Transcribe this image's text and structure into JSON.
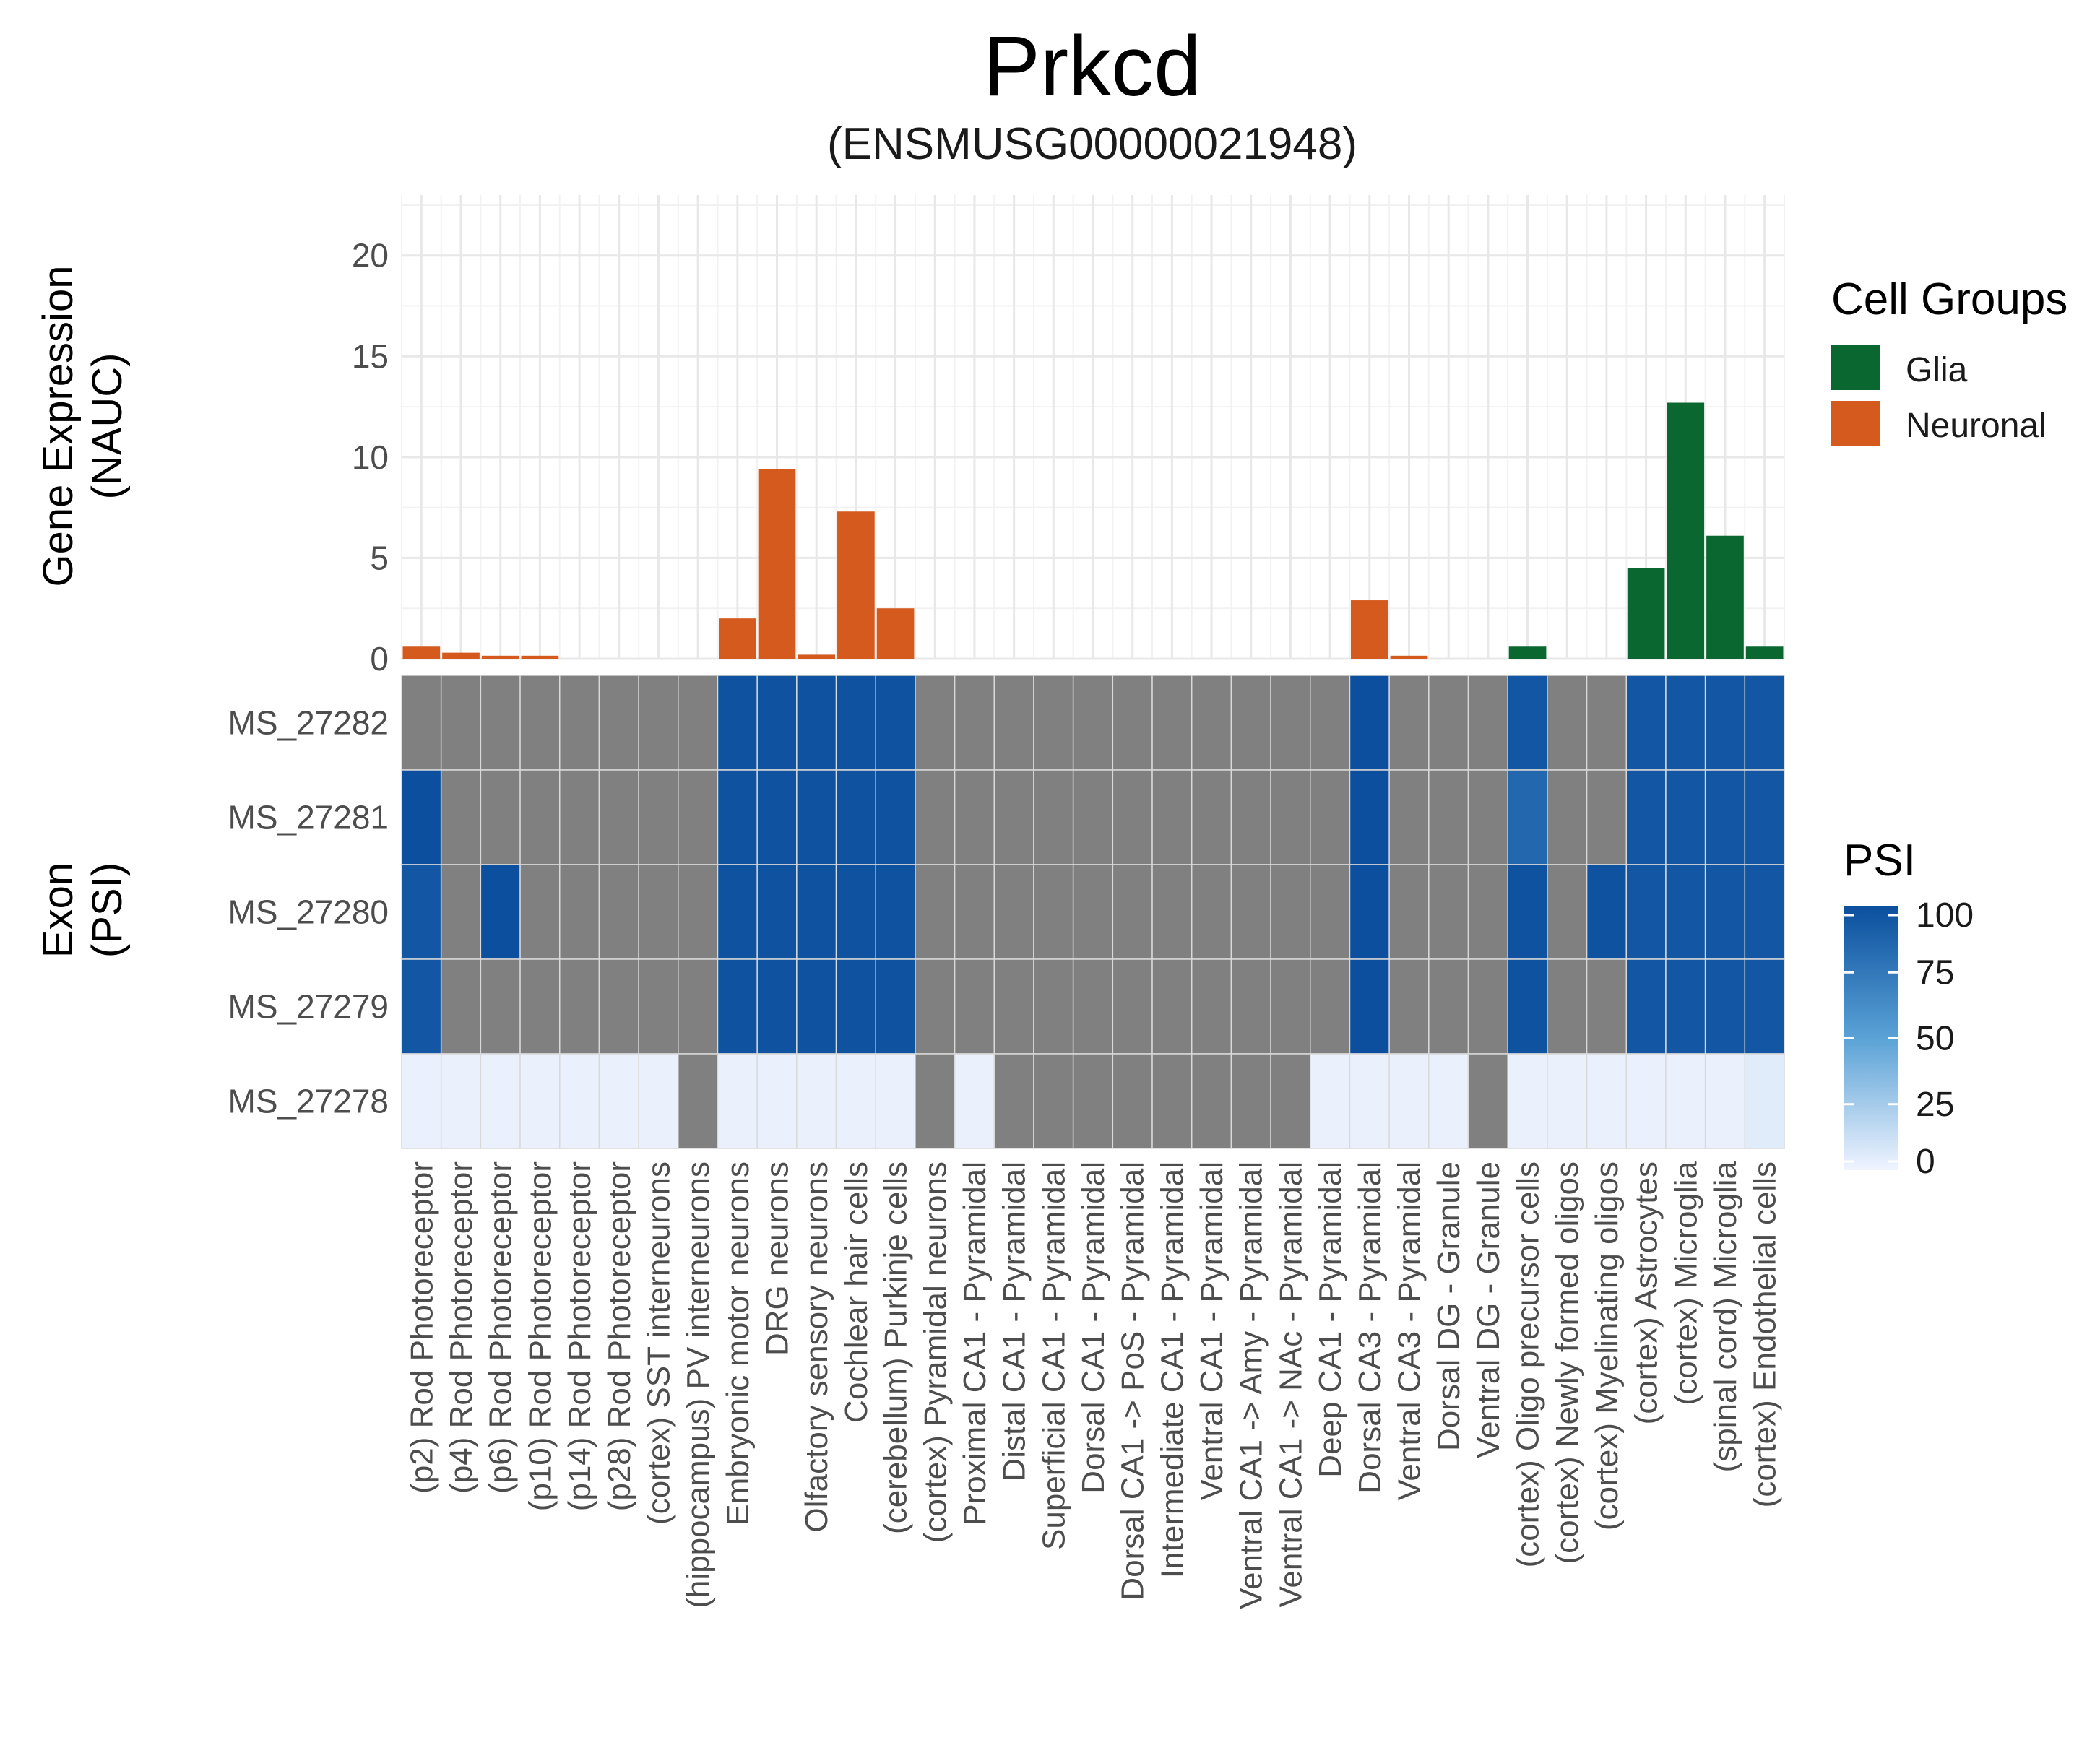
{
  "chart_data": {
    "type": "bar+heatmap",
    "title": "Prkcd",
    "subtitle": "(ENSMUSG00000021948)",
    "bar_ylabel_line1": "Gene Expression",
    "bar_ylabel_line2": "(NAUC)",
    "heat_ylabel_line1": "Exon",
    "heat_ylabel_line2": "(PSI)",
    "ylim": [
      0,
      23
    ],
    "yticks": [
      "0",
      "5",
      "10",
      "15",
      "20"
    ],
    "categories": [
      "(p2) Rod Photoreceptor",
      "(p4) Rod Photoreceptor",
      "(p6) Rod Photoreceptor",
      "(p10) Rod Photoreceptor",
      "(p14) Rod Photoreceptor",
      "(p28) Rod Photoreceptor",
      "(cortex) SST interneurons",
      "(hippocampus) PV interneurons",
      "Embryonic motor neurons",
      "DRG neurons",
      "Olfactory sensory neurons",
      "Cochlear hair cells",
      "(cerebellum) Purkinje cells",
      "(cortex) Pyramidal neurons",
      "Proximal CA1 - Pyramidal",
      "Distal CA1 - Pyramidal",
      "Superficial CA1 - Pyramidal",
      "Dorsal CA1 - Pyramidal",
      "Dorsal CA1 -> PoS - Pyramidal",
      "Intermediate CA1 - Pyramidal",
      "Ventral CA1 - Pyramidal",
      "Ventral CA1 -> Amy - Pyramidal",
      "Ventral CA1 -> NAc - Pyramidal",
      "Deep CA1 - Pyramidal",
      "Dorsal CA3 - Pyramidal",
      "Ventral CA3 - Pyramidal",
      "Dorsal DG - Granule",
      "Ventral DG - Granule",
      "(cortex) Oligo precursor cells",
      "(cortex) Newly formed oligos",
      "(cortex) Myelinating oligos",
      "(cortex) Astrocytes",
      "(cortex) Microglia",
      "(spinal cord) Microglia",
      "(cortex) Endothelial cells"
    ],
    "groups": [
      "Neuronal",
      "Neuronal",
      "Neuronal",
      "Neuronal",
      "Neuronal",
      "Neuronal",
      "Neuronal",
      "Neuronal",
      "Neuronal",
      "Neuronal",
      "Neuronal",
      "Neuronal",
      "Neuronal",
      "Neuronal",
      "Neuronal",
      "Neuronal",
      "Neuronal",
      "Neuronal",
      "Neuronal",
      "Neuronal",
      "Neuronal",
      "Neuronal",
      "Neuronal",
      "Neuronal",
      "Neuronal",
      "Neuronal",
      "Neuronal",
      "Neuronal",
      "Glia",
      "Glia",
      "Glia",
      "Glia",
      "Glia",
      "Glia",
      "Glia"
    ],
    "values": [
      0.6,
      0.3,
      0.15,
      0.15,
      0,
      0,
      0,
      0,
      2.0,
      9.4,
      0.2,
      7.3,
      2.5,
      0,
      0,
      0,
      0,
      0,
      0,
      0,
      0,
      0,
      0,
      0,
      2.9,
      0.15,
      0,
      0,
      0.6,
      0,
      0,
      4.5,
      12.7,
      6.1,
      0.6
    ],
    "exons": [
      "MS_27282",
      "MS_27281",
      "MS_27280",
      "MS_27279",
      "MS_27278"
    ],
    "psi": [
      [
        null,
        null,
        null,
        null,
        null,
        null,
        null,
        null,
        98,
        98,
        98,
        98,
        98,
        null,
        null,
        null,
        null,
        null,
        null,
        null,
        null,
        null,
        null,
        null,
        100,
        null,
        null,
        null,
        95,
        null,
        null,
        95,
        95,
        95,
        95
      ],
      [
        100,
        null,
        null,
        null,
        null,
        null,
        null,
        null,
        98,
        98,
        98,
        98,
        98,
        null,
        null,
        null,
        null,
        null,
        null,
        null,
        null,
        null,
        null,
        null,
        100,
        null,
        null,
        null,
        85,
        null,
        null,
        95,
        95,
        95,
        95
      ],
      [
        95,
        null,
        100,
        null,
        null,
        null,
        null,
        null,
        98,
        98,
        98,
        98,
        98,
        null,
        null,
        null,
        null,
        null,
        null,
        null,
        null,
        null,
        null,
        null,
        100,
        null,
        null,
        null,
        98,
        null,
        98,
        95,
        95,
        95,
        95
      ],
      [
        95,
        null,
        null,
        null,
        null,
        null,
        null,
        null,
        98,
        98,
        98,
        98,
        98,
        null,
        null,
        null,
        null,
        null,
        null,
        null,
        null,
        null,
        null,
        null,
        100,
        null,
        null,
        null,
        98,
        null,
        null,
        95,
        95,
        95,
        95
      ],
      [
        2,
        2,
        2,
        2,
        2,
        2,
        2,
        null,
        2,
        2,
        2,
        2,
        2,
        null,
        2,
        null,
        null,
        null,
        null,
        null,
        null,
        null,
        null,
        2,
        2,
        2,
        2,
        null,
        2,
        2,
        2,
        2,
        2,
        2,
        5
      ]
    ],
    "legend_groups": {
      "title": "Cell Groups",
      "items": [
        {
          "label": "Glia",
          "color": "#0b6730"
        },
        {
          "label": "Neuronal",
          "color": "#d45a1e"
        }
      ]
    },
    "legend_psi": {
      "title": "PSI",
      "ticks": [
        "100",
        "75",
        "50",
        "25",
        "0"
      ],
      "low_color": "#f0f4ff",
      "high_color": "#0b4f9e"
    },
    "na_color": "#808080",
    "grid": true
  }
}
